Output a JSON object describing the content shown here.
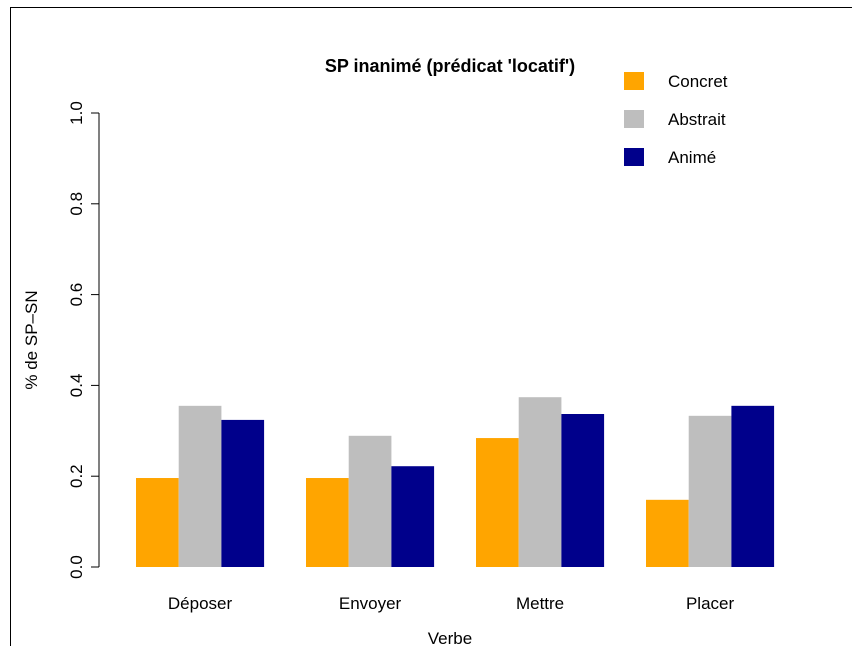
{
  "chart_data": {
    "type": "bar",
    "title": "SP inanimé (prédicat 'locatif')",
    "xlabel": "Verbe",
    "ylabel": "% de SP–SN",
    "categories": [
      "Déposer",
      "Envoyer",
      "Mettre",
      "Placer"
    ],
    "series": [
      {
        "name": "Concret",
        "color": "#ffa500",
        "values": [
          0.196,
          0.196,
          0.284,
          0.148
        ]
      },
      {
        "name": "Abstrait",
        "color": "#bebebe",
        "values": [
          0.355,
          0.289,
          0.374,
          0.333
        ]
      },
      {
        "name": "Animé",
        "color": "#00008b",
        "values": [
          0.324,
          0.222,
          0.337,
          0.355
        ]
      }
    ],
    "ylim": [
      0,
      1
    ],
    "yticks": [
      {
        "value": 0,
        "label": "0.0"
      },
      0.2,
      0.4,
      0.6,
      0.8,
      {
        "value": 1,
        "label": "1.0"
      }
    ],
    "legend": "top-right"
  }
}
